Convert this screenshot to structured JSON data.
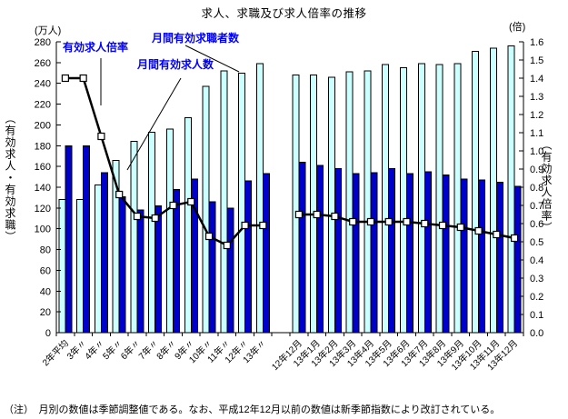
{
  "title": "求人、求職及び求人倍率の推移",
  "footnote": "（注）　月別の数値は季節調整値である。なお、平成12年12月以前の数値は新季節指数により改訂されている。",
  "left_axis": {
    "unit": "(万人)",
    "label": "（有効求人・有効求職）",
    "min": 0,
    "max": 280,
    "step": 20,
    "ticks": [
      "0",
      "20",
      "40",
      "60",
      "80",
      "100",
      "120",
      "140",
      "160",
      "180",
      "200",
      "220",
      "240",
      "260",
      "280"
    ]
  },
  "right_axis": {
    "unit": "(倍)",
    "label": "（有効求人倍率）",
    "min": 0,
    "max": 1.6,
    "step": 0.1,
    "ticks": [
      "0.0",
      "0.1",
      "0.2",
      "0.3",
      "0.4",
      "0.5",
      "0.6",
      "0.7",
      "0.8",
      "0.9",
      "1.0",
      "1.1",
      "1.2",
      "1.3",
      "1.4",
      "1.5",
      "1.6"
    ]
  },
  "annotations": {
    "rate_label": "有効求人倍率",
    "seekers_label": "月間有効求職者数",
    "openings_label": "月間有効求人数"
  },
  "colors": {
    "seekers_bar": "#ccffff",
    "openings_bar": "#0000cc",
    "bar_border": "#000000",
    "rate_line": "#000000",
    "marker_fill": "#ffffff",
    "annotation_text": "#0000ff",
    "axis": "#000000"
  },
  "chart_data": {
    "type": "bar",
    "note": "combo chart: two bar series on left axis (万人), one line series on right axis (倍); gap between yearly-average group and monthly group",
    "categories": [
      "2年平均",
      "3年〃",
      "4年〃",
      "5年〃",
      "6年〃",
      "7年〃",
      "8年〃",
      "9年〃",
      "10年〃",
      "11年〃",
      "12年〃",
      "13年〃",
      "12年12月",
      "13年1月",
      "13年2月",
      "13年3月",
      "13年4月",
      "13年5月",
      "13年6月",
      "13年7月",
      "13年8月",
      "13年9月",
      "13年10月",
      "13年11月",
      "13年12月"
    ],
    "gap_after_index": 11,
    "series": [
      {
        "name": "月間有効求職者数",
        "kind": "bar",
        "axis": "left",
        "values": [
          128,
          128,
          142,
          166,
          184,
          193,
          196,
          207,
          237,
          252,
          250,
          259,
          248,
          248,
          246,
          251,
          252,
          258,
          255,
          259,
          258,
          259,
          271,
          274,
          276
        ]
      },
      {
        "name": "月間有効求人数",
        "kind": "bar",
        "axis": "left",
        "values": [
          180,
          180,
          154,
          131,
          118,
          122,
          138,
          148,
          126,
          120,
          146,
          153,
          164,
          161,
          158,
          153,
          154,
          158,
          153,
          155,
          152,
          148,
          147,
          145,
          141
        ]
      },
      {
        "name": "有効求人倍率",
        "kind": "line",
        "axis": "right",
        "values": [
          1.4,
          1.4,
          1.08,
          0.76,
          0.64,
          0.63,
          0.7,
          0.72,
          0.53,
          0.48,
          0.59,
          0.59,
          0.65,
          0.65,
          0.64,
          0.61,
          0.61,
          0.61,
          0.61,
          0.6,
          0.59,
          0.58,
          0.56,
          0.54,
          0.52
        ]
      }
    ],
    "ylim_left": [
      0,
      280
    ],
    "ylim_right": [
      0,
      1.6
    ],
    "grid": false,
    "legend_position": "annotations with leader lines inside plot"
  }
}
